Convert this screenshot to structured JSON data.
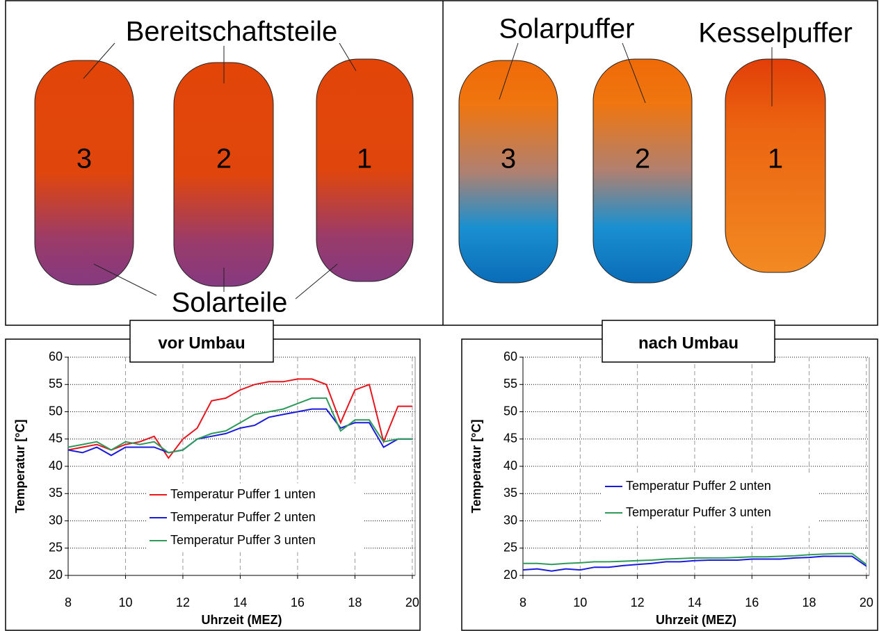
{
  "diagram": {
    "left": {
      "top_label": "Bereitschaftsteile",
      "bottom_label": "Solarteile",
      "tanks": [
        "3",
        "2",
        "1"
      ]
    },
    "right": {
      "labels": [
        "Solarpuffer",
        "Kesselpuffer"
      ],
      "tanks": [
        "3",
        "2",
        "1"
      ]
    }
  },
  "chart_data": [
    {
      "type": "line",
      "title": "vor Umbau",
      "y_label": "Temperatur [°C]",
      "x_label": "Uhrzeit (MEZ)",
      "x": [
        8,
        8.5,
        9,
        9.5,
        10,
        10.5,
        11,
        11.5,
        12,
        12.5,
        13,
        13.5,
        14,
        14.5,
        15,
        15.5,
        16,
        16.5,
        17,
        17.5,
        18,
        18.5,
        19,
        19.5,
        20
      ],
      "xlim": [
        8,
        20.1
      ],
      "xticks": [
        8,
        10,
        12,
        14,
        16,
        18,
        20
      ],
      "ylim": [
        20,
        60
      ],
      "yticks": [
        20,
        25,
        30,
        35,
        40,
        45,
        50,
        55,
        60
      ],
      "grid": true,
      "series": [
        {
          "name": "Temperatur Puffer 1 unten",
          "color": "#e8141c",
          "values": [
            43,
            43.5,
            44,
            43,
            44,
            44.5,
            45.5,
            41.5,
            45,
            47,
            52,
            52.5,
            54,
            55,
            55.5,
            55.5,
            56,
            56,
            55,
            48,
            54,
            55,
            44.5,
            51,
            51
          ]
        },
        {
          "name": "Temperatur Puffer 2 unten",
          "color": "#1a1adc",
          "values": [
            43,
            42.5,
            43.5,
            42,
            43.5,
            43.5,
            43.5,
            42.5,
            43,
            45,
            45.5,
            46,
            47,
            47.5,
            49,
            49.5,
            50,
            50.5,
            50.5,
            47,
            48,
            48,
            43.5,
            45,
            45
          ]
        },
        {
          "name": "Temperatur Puffer 3 unten",
          "color": "#2e9a5a",
          "values": [
            43.5,
            44,
            44.5,
            43,
            44.5,
            44,
            44.5,
            42.5,
            43,
            45,
            46,
            46.5,
            48,
            49.5,
            50,
            50.5,
            51.5,
            52.5,
            52.5,
            46.5,
            48.5,
            48.5,
            44.5,
            45,
            45
          ]
        }
      ]
    },
    {
      "type": "line",
      "title": "nach Umbau",
      "y_label": "Temperatur [°C]",
      "x_label": "Uhrzeit (MEZ)",
      "x": [
        8,
        8.5,
        9,
        9.5,
        10,
        10.5,
        11,
        11.5,
        12,
        12.5,
        13,
        13.5,
        14,
        14.5,
        15,
        15.5,
        16,
        16.5,
        17,
        17.5,
        18,
        18.5,
        19,
        19.5,
        20
      ],
      "xlim": [
        8,
        20.1
      ],
      "xticks": [
        8,
        10,
        12,
        14,
        16,
        18,
        20
      ],
      "ylim": [
        20,
        60
      ],
      "yticks": [
        20,
        25,
        30,
        35,
        40,
        45,
        50,
        55,
        60
      ],
      "grid": true,
      "series": [
        {
          "name": "Temperatur Puffer 2 unten",
          "color": "#1a1adc",
          "values": [
            21,
            21.2,
            20.8,
            21.2,
            21,
            21.5,
            21.5,
            21.8,
            22,
            22.2,
            22.5,
            22.5,
            22.7,
            22.8,
            22.8,
            22.8,
            23,
            23,
            23,
            23.2,
            23.3,
            23.5,
            23.5,
            23.5,
            21.7
          ]
        },
        {
          "name": "Temperatur Puffer 3 unten",
          "color": "#2e9a5a",
          "values": [
            22.2,
            22.2,
            22,
            22.2,
            22.3,
            22.5,
            22.5,
            22.6,
            22.7,
            22.8,
            23,
            23.1,
            23.2,
            23.2,
            23.2,
            23.3,
            23.4,
            23.4,
            23.5,
            23.6,
            23.8,
            23.9,
            24,
            24,
            22
          ]
        }
      ]
    }
  ]
}
